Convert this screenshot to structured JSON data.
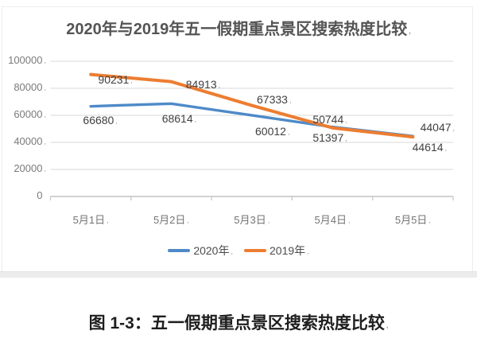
{
  "chart": {
    "title": "2020年与2019年五一假期重点景区搜索热度比较",
    "colors": {
      "grid": "#d9d9d9",
      "axis": "#c4c4c4",
      "background": "#ffffff"
    }
  },
  "chart_data": {
    "type": "line",
    "title": "2020年与2019年五一假期重点景区搜索热度比较",
    "categories": [
      "5月1日",
      "5月2日",
      "5月3日",
      "5月4日",
      "5月5日"
    ],
    "series": [
      {
        "name": "2020年",
        "color": "#4e8ac8",
        "values": [
          66680,
          68614,
          60012,
          51397,
          44614
        ]
      },
      {
        "name": "2019年",
        "color": "#ed7d31",
        "values": [
          90231,
          84913,
          67333,
          50744,
          44047
        ]
      }
    ],
    "y_ticks": [
      0,
      20000,
      40000,
      60000,
      80000,
      100000
    ],
    "ylim": [
      0,
      100000
    ],
    "xlabel": "",
    "ylabel": "",
    "grid": true,
    "legend_position": "bottom"
  },
  "caption": {
    "text": "图 1-3：五一假期重点景区搜索热度比较"
  },
  "artifacts": {
    "mark": ","
  }
}
